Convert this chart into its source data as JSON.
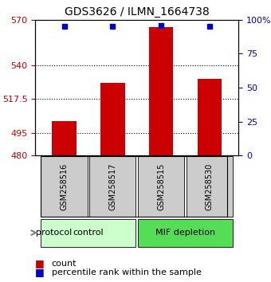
{
  "title": "GDS3626 / ILMN_1664738",
  "samples": [
    "GSM258516",
    "GSM258517",
    "GSM258515",
    "GSM258530"
  ],
  "bar_values": [
    503,
    528,
    565,
    531
  ],
  "percentile_values": [
    95,
    95,
    96,
    95
  ],
  "ymin": 480,
  "ymax": 570,
  "yticks_left": [
    480,
    495,
    517.5,
    540,
    570
  ],
  "yticks_right": [
    0,
    25,
    50,
    75,
    100
  ],
  "bar_color": "#cc0000",
  "dot_color": "#0000cc",
  "grid_color": "#000000",
  "control_samples": [
    "GSM258516",
    "GSM258517"
  ],
  "mif_samples": [
    "GSM258515",
    "GSM258530"
  ],
  "control_label": "control",
  "mif_label": "MIF depletion",
  "control_color": "#ccffcc",
  "mif_color": "#55dd55",
  "protocol_label": "protocol",
  "legend_count": "count",
  "legend_percentile": "percentile rank within the sample",
  "sample_box_color": "#cccccc",
  "tick_label_color_left": "#cc0000",
  "tick_label_color_right": "#0000cc"
}
